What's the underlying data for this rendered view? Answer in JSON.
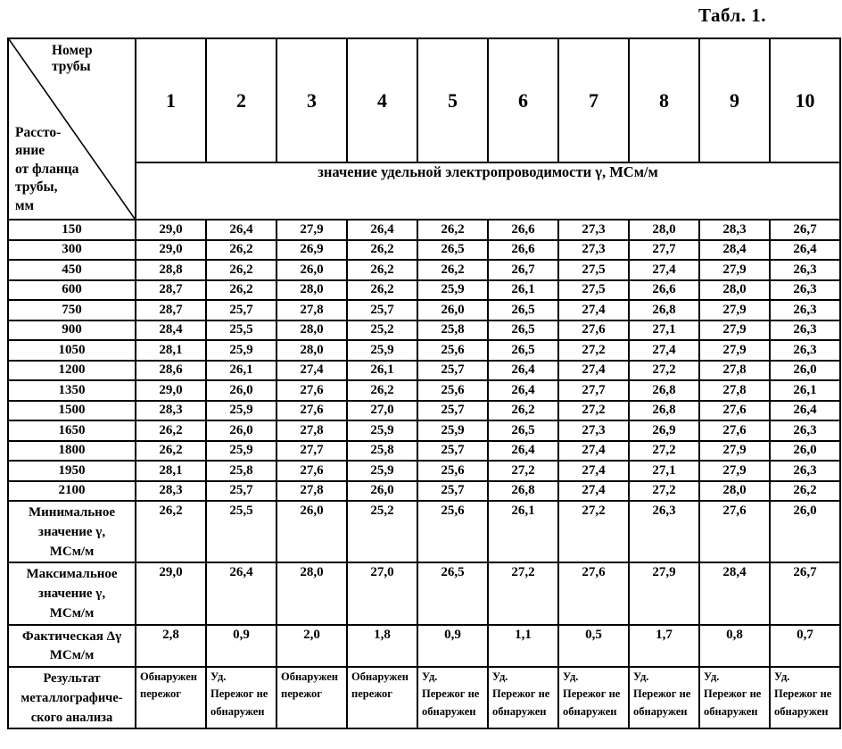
{
  "title": "Табл. 1.",
  "table": {
    "corner": {
      "top_label": "Номер трубы",
      "bottom_label": "Рассто-\nяние\nот фланца\nтрубы,\nмм"
    },
    "pipe_numbers": [
      "1",
      "2",
      "3",
      "4",
      "5",
      "6",
      "7",
      "8",
      "9",
      "10"
    ],
    "band_label": "значение удельной электропроводимости γ,  МСм/м",
    "data_rows": [
      {
        "distance": "150",
        "values": [
          "29,0",
          "26,4",
          "27,9",
          "26,4",
          "26,2",
          "26,6",
          "27,3",
          "28,0",
          "28,3",
          "26,7"
        ]
      },
      {
        "distance": "300",
        "values": [
          "29,0",
          "26,2",
          "26,9",
          "26,2",
          "26,5",
          "26,6",
          "27,3",
          "27,7",
          "28,4",
          "26,4"
        ]
      },
      {
        "distance": "450",
        "values": [
          "28,8",
          "26,2",
          "26,0",
          "26,2",
          "26,2",
          "26,7",
          "27,5",
          "27,4",
          "27,9",
          "26,3"
        ]
      },
      {
        "distance": "600",
        "values": [
          "28,7",
          "26,2",
          "28,0",
          "26,2",
          "25,9",
          "26,1",
          "27,5",
          "26,6",
          "28,0",
          "26,3"
        ]
      },
      {
        "distance": "750",
        "values": [
          "28,7",
          "25,7",
          "27,8",
          "25,7",
          "26,0",
          "26,5",
          "27,4",
          "26,8",
          "27,9",
          "26,3"
        ]
      },
      {
        "distance": "900",
        "values": [
          "28,4",
          "25,5",
          "28,0",
          "25,2",
          "25,8",
          "26,5",
          "27,6",
          "27,1",
          "27,9",
          "26,3"
        ]
      },
      {
        "distance": "1050",
        "values": [
          "28,1",
          "25,9",
          "28,0",
          "25,9",
          "25,6",
          "26,5",
          "27,2",
          "27,4",
          "27,9",
          "26,3"
        ]
      },
      {
        "distance": "1200",
        "values": [
          "28,6",
          "26,1",
          "27,4",
          "26,1",
          "25,7",
          "26,4",
          "27,4",
          "27,2",
          "27,8",
          "26,0"
        ]
      },
      {
        "distance": "1350",
        "values": [
          "29,0",
          "26,0",
          "27,6",
          "26,2",
          "25,6",
          "26,4",
          "27,7",
          "26,8",
          "27,8",
          "26,1"
        ]
      },
      {
        "distance": "1500",
        "values": [
          "28,3",
          "25,9",
          "27,6",
          "27,0",
          "25,7",
          "26,2",
          "27,2",
          "26,8",
          "27,6",
          "26,4"
        ]
      },
      {
        "distance": "1650",
        "values": [
          "26,2",
          "26,0",
          "27,8",
          "25,9",
          "25,9",
          "26,5",
          "27,3",
          "26,9",
          "27,6",
          "26,3"
        ]
      },
      {
        "distance": "1800",
        "values": [
          "26,2",
          "25,9",
          "27,7",
          "25,8",
          "25,7",
          "26,4",
          "27,4",
          "27,2",
          "27,9",
          "26,0"
        ]
      },
      {
        "distance": "1950",
        "values": [
          "28,1",
          "25,8",
          "27,6",
          "25,9",
          "25,6",
          "27,2",
          "27,4",
          "27,1",
          "27,9",
          "26,3"
        ]
      },
      {
        "distance": "2100",
        "values": [
          "28,3",
          "25,7",
          "27,8",
          "26,0",
          "25,7",
          "26,8",
          "27,4",
          "27,2",
          "28,0",
          "26,2"
        ]
      }
    ],
    "summary_rows": [
      {
        "id": "min",
        "label": "Минимальное\nзначение γ,\nМСм/м",
        "values": [
          "26,2",
          "25,5",
          "26,0",
          "25,2",
          "25,6",
          "26,1",
          "27,2",
          "26,3",
          "27,6",
          "26,0"
        ]
      },
      {
        "id": "max",
        "label": "Максимальное\nзначение γ,\nМСм/м",
        "values": [
          "29,0",
          "26,4",
          "28,0",
          "27,0",
          "26,5",
          "27,2",
          "27,6",
          "27,9",
          "28,4",
          "26,7"
        ]
      },
      {
        "id": "delta",
        "label": "Фактическая Δγ\nМСм/м",
        "values": [
          "2,8",
          "0,9",
          "2,0",
          "1,8",
          "0,9",
          "1,1",
          "0,5",
          "1,7",
          "0,8",
          "0,7"
        ]
      },
      {
        "id": "result",
        "label": "Результат\nметаллографиче-\nского анализа",
        "values": [
          "Обнаружен\nпережог",
          "Уд.\nПережог не\nобнаружен",
          "Обнаружен\nпережог",
          "Обнаружен\nпережог",
          "Уд.\nПережог не\nобнаружен",
          "Уд.\nПережог не\nобнаружен",
          "Уд.\nПережог не\nобнаружен",
          "Уд.\nПережог не\nобнаружен",
          "Уд.\nПережог не\nобнаружен",
          "Уд.\nПережог не\nобнаружен"
        ]
      }
    ]
  }
}
